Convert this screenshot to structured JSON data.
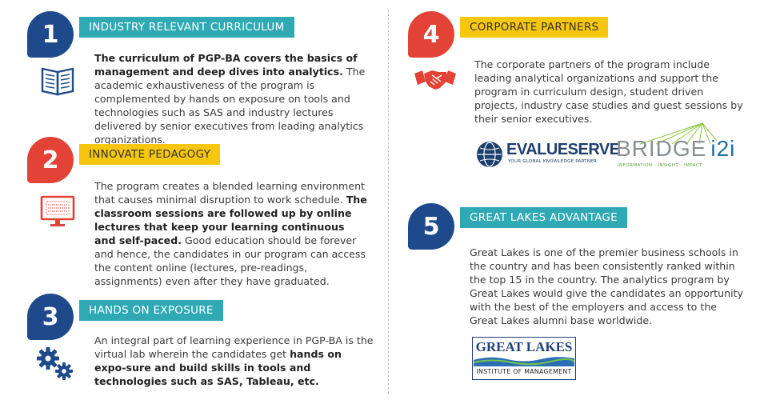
{
  "sections": [
    {
      "number": "1",
      "title": "INDUSTRY RELEVANT CURRICULUM",
      "paragraph": [
        {
          "text": "The curriculum of PGP-BA covers the basics of management and deep dives into analytics.",
          "bold": true
        },
        {
          "text": " The academic exhaustiveness of the program is complemented by hands on exposure on tools and technologies such as SAS and industry lectures delivered by senior executives from leading analytics organizations.",
          "bold": false
        }
      ],
      "icon": "book-icon",
      "number_color": "#1e4a8c"
    },
    {
      "number": "2",
      "title": "INNOVATE PEDAGOGY",
      "paragraph": [
        {
          "text": "The program creates a blended learning environment that causes minimal disruption to work schedule. ",
          "bold": false
        },
        {
          "text": "The classroom sessions are followed up by online lectures that keep your learning continuous and self-paced.",
          "bold": true
        },
        {
          "text": " Good education should be forever and hence, the candidates in our program can access the content online (lectures, pre-readings, assignments) even after they have graduated.",
          "bold": false
        }
      ],
      "icon": "monitor-icon",
      "number_color": "#e24336"
    },
    {
      "number": "3",
      "title": "HANDS ON EXPOSURE",
      "paragraph": [
        {
          "text": "An integral part of learning experience in PGP-BA is the virtual lab wherein the candidates get ",
          "bold": false
        },
        {
          "text": "hands on expo-sure and build skills in tools and technologies such as SAS, Tableau, etc.",
          "bold": true
        }
      ],
      "icon": "gears-icon",
      "number_color": "#1e4a8c"
    },
    {
      "number": "4",
      "title": "CORPORATE PARTNERS",
      "paragraph": [
        {
          "text": "The corporate partners of the program include leading analytical organizations and support the program in curriculum design, student driven projects, industry case studies and guest sessions by their senior executives.",
          "bold": false
        }
      ],
      "icon": "handshake-icon",
      "number_color": "#e24336"
    },
    {
      "number": "5",
      "title": "GREAT LAKES ADVANTAGE",
      "paragraph": [
        {
          "text": "Great Lakes is one of the premier business schools in the country and has been consistently ranked within the top 15 in the country. The analytics program by Great Lakes would give the candidates an opportunity with the best of the employers and access to the Great Lakes alumni base worldwide.",
          "bold": false
        }
      ],
      "number_color": "#1e4a8c"
    }
  ],
  "logos": {
    "evalueserve": {
      "name": "EVALUESERVE",
      "tagline": "YOUR GLOBAL KNOWLEDGE PARTNER"
    },
    "bridgei2i": {
      "name": "BRIDGE",
      "suffix": "i2i",
      "tagline": "INFORMATION - INSIGHT - IMPACT"
    },
    "greatlakes": {
      "name": "GREAT LAKES",
      "tagline": "INSTITUTE OF MANAGEMENT"
    }
  },
  "colors": {
    "teal": "#2fa9b3",
    "yellow": "#f6c70e",
    "navy": "#1e4a8c",
    "red": "#e24336"
  }
}
